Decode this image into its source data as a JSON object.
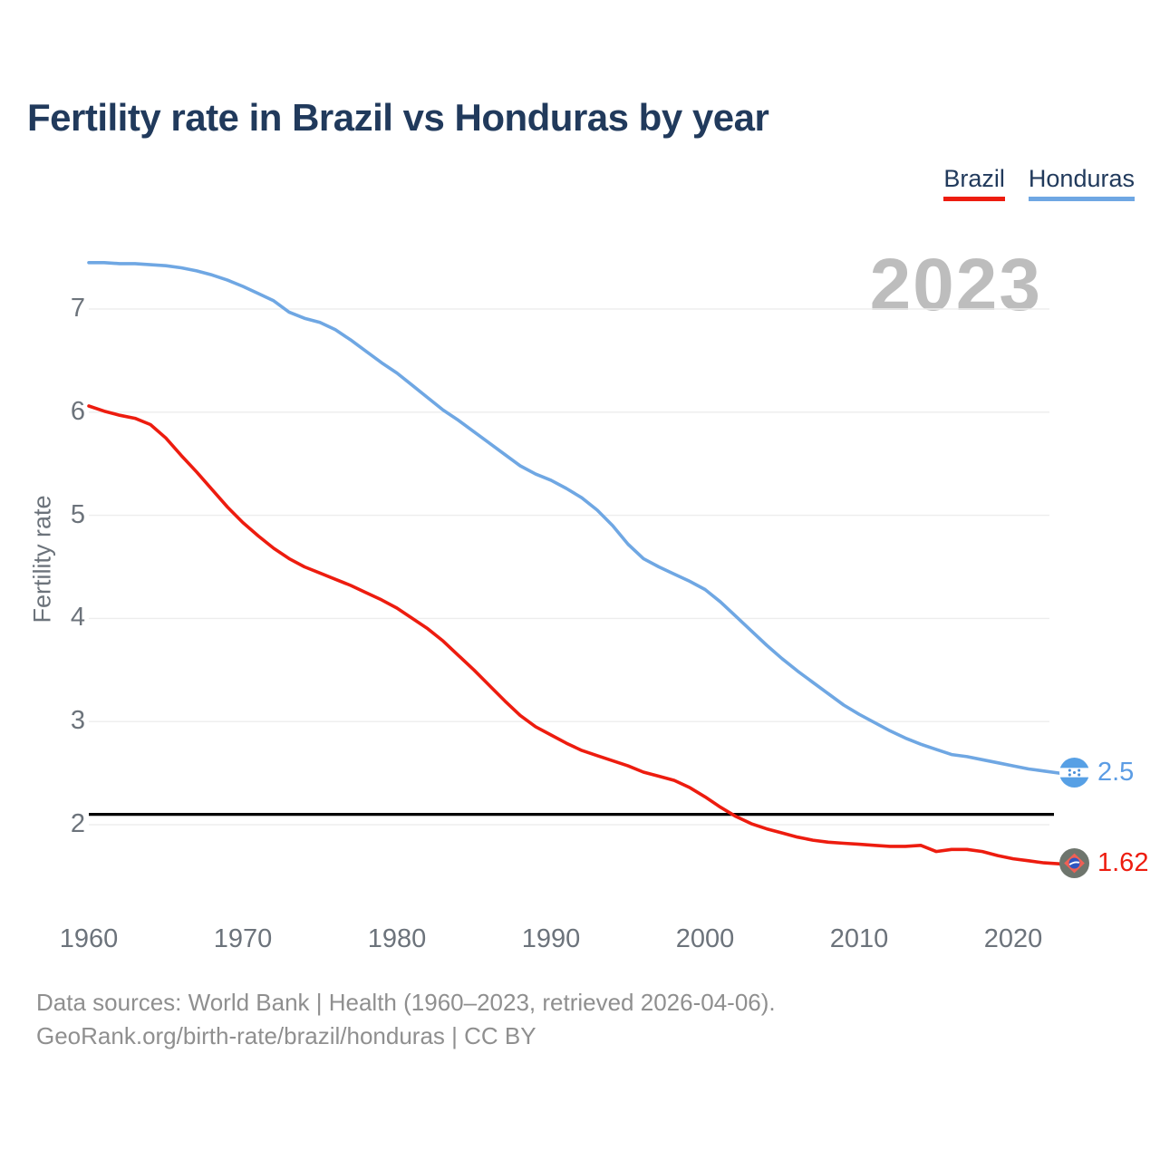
{
  "title": "Fertility rate in Brazil vs Honduras by year",
  "watermark": "2023",
  "legend": [
    {
      "label": "Brazil",
      "color": "#ed1c0f"
    },
    {
      "label": "Honduras",
      "color": "#6fa7e3"
    }
  ],
  "y_axis": {
    "label": "Fertility rate",
    "ticks": [
      "7",
      "6",
      "5",
      "4",
      "3",
      "2"
    ]
  },
  "x_axis": {
    "ticks": [
      "1960",
      "1970",
      "1980",
      "1990",
      "2000",
      "2010",
      "2020"
    ]
  },
  "reference_line": {
    "value": 2.1,
    "color": "#000000"
  },
  "end_labels": [
    {
      "series": "Honduras",
      "value": "2.5",
      "numeric": 2.5,
      "color": "#5b9ce4",
      "flag_icon": "honduras-flag"
    },
    {
      "series": "Brazil",
      "value": "1.62",
      "numeric": 1.62,
      "color": "#ed1c0f",
      "flag_icon": "brazil-flag"
    }
  ],
  "footer": {
    "line1": "Data sources: World Bank | Health (1960–2023, retrieved 2026-04-06).",
    "line2": "GeoRank.org/birth-rate/brazil/honduras | CC BY"
  },
  "chart_data": {
    "type": "line",
    "title": "Fertility rate in Brazil vs Honduras by year",
    "xlabel": "",
    "ylabel": "Fertility rate",
    "x_range": [
      1960,
      2023
    ],
    "y_ticks": [
      2,
      3,
      4,
      5,
      6,
      7
    ],
    "grid": true,
    "legend_position": "top-right",
    "reference_line_y": 2.1,
    "x": [
      1960,
      1961,
      1962,
      1963,
      1964,
      1965,
      1966,
      1967,
      1968,
      1969,
      1970,
      1971,
      1972,
      1973,
      1974,
      1975,
      1976,
      1977,
      1978,
      1979,
      1980,
      1981,
      1982,
      1983,
      1984,
      1985,
      1986,
      1987,
      1988,
      1989,
      1990,
      1991,
      1992,
      1993,
      1994,
      1995,
      1996,
      1997,
      1998,
      1999,
      2000,
      2001,
      2002,
      2003,
      2004,
      2005,
      2006,
      2007,
      2008,
      2009,
      2010,
      2011,
      2012,
      2013,
      2014,
      2015,
      2016,
      2017,
      2018,
      2019,
      2020,
      2021,
      2022,
      2023
    ],
    "series": [
      {
        "name": "Brazil",
        "color": "#ed1c0f",
        "values": [
          6.06,
          6.01,
          5.97,
          5.94,
          5.88,
          5.75,
          5.58,
          5.42,
          5.25,
          5.08,
          4.93,
          4.8,
          4.68,
          4.58,
          4.5,
          4.44,
          4.38,
          4.32,
          4.25,
          4.18,
          4.1,
          4.0,
          3.9,
          3.78,
          3.64,
          3.5,
          3.35,
          3.2,
          3.06,
          2.95,
          2.87,
          2.79,
          2.72,
          2.67,
          2.62,
          2.57,
          2.51,
          2.47,
          2.43,
          2.36,
          2.27,
          2.17,
          2.08,
          2.01,
          1.96,
          1.92,
          1.88,
          1.85,
          1.83,
          1.82,
          1.81,
          1.8,
          1.79,
          1.79,
          1.8,
          1.74,
          1.76,
          1.76,
          1.74,
          1.7,
          1.67,
          1.65,
          1.63,
          1.62
        ]
      },
      {
        "name": "Honduras",
        "color": "#6fa7e3",
        "values": [
          7.45,
          7.45,
          7.44,
          7.44,
          7.43,
          7.42,
          7.4,
          7.37,
          7.33,
          7.28,
          7.22,
          7.15,
          7.08,
          6.97,
          6.91,
          6.87,
          6.8,
          6.7,
          6.59,
          6.48,
          6.38,
          6.26,
          6.14,
          6.02,
          5.92,
          5.81,
          5.7,
          5.59,
          5.48,
          5.4,
          5.34,
          5.26,
          5.17,
          5.05,
          4.9,
          4.72,
          4.58,
          4.5,
          4.43,
          4.36,
          4.28,
          4.16,
          4.02,
          3.88,
          3.74,
          3.61,
          3.49,
          3.38,
          3.27,
          3.16,
          3.07,
          2.99,
          2.91,
          2.84,
          2.78,
          2.73,
          2.68,
          2.66,
          2.63,
          2.6,
          2.57,
          2.54,
          2.52,
          2.5
        ]
      }
    ]
  }
}
